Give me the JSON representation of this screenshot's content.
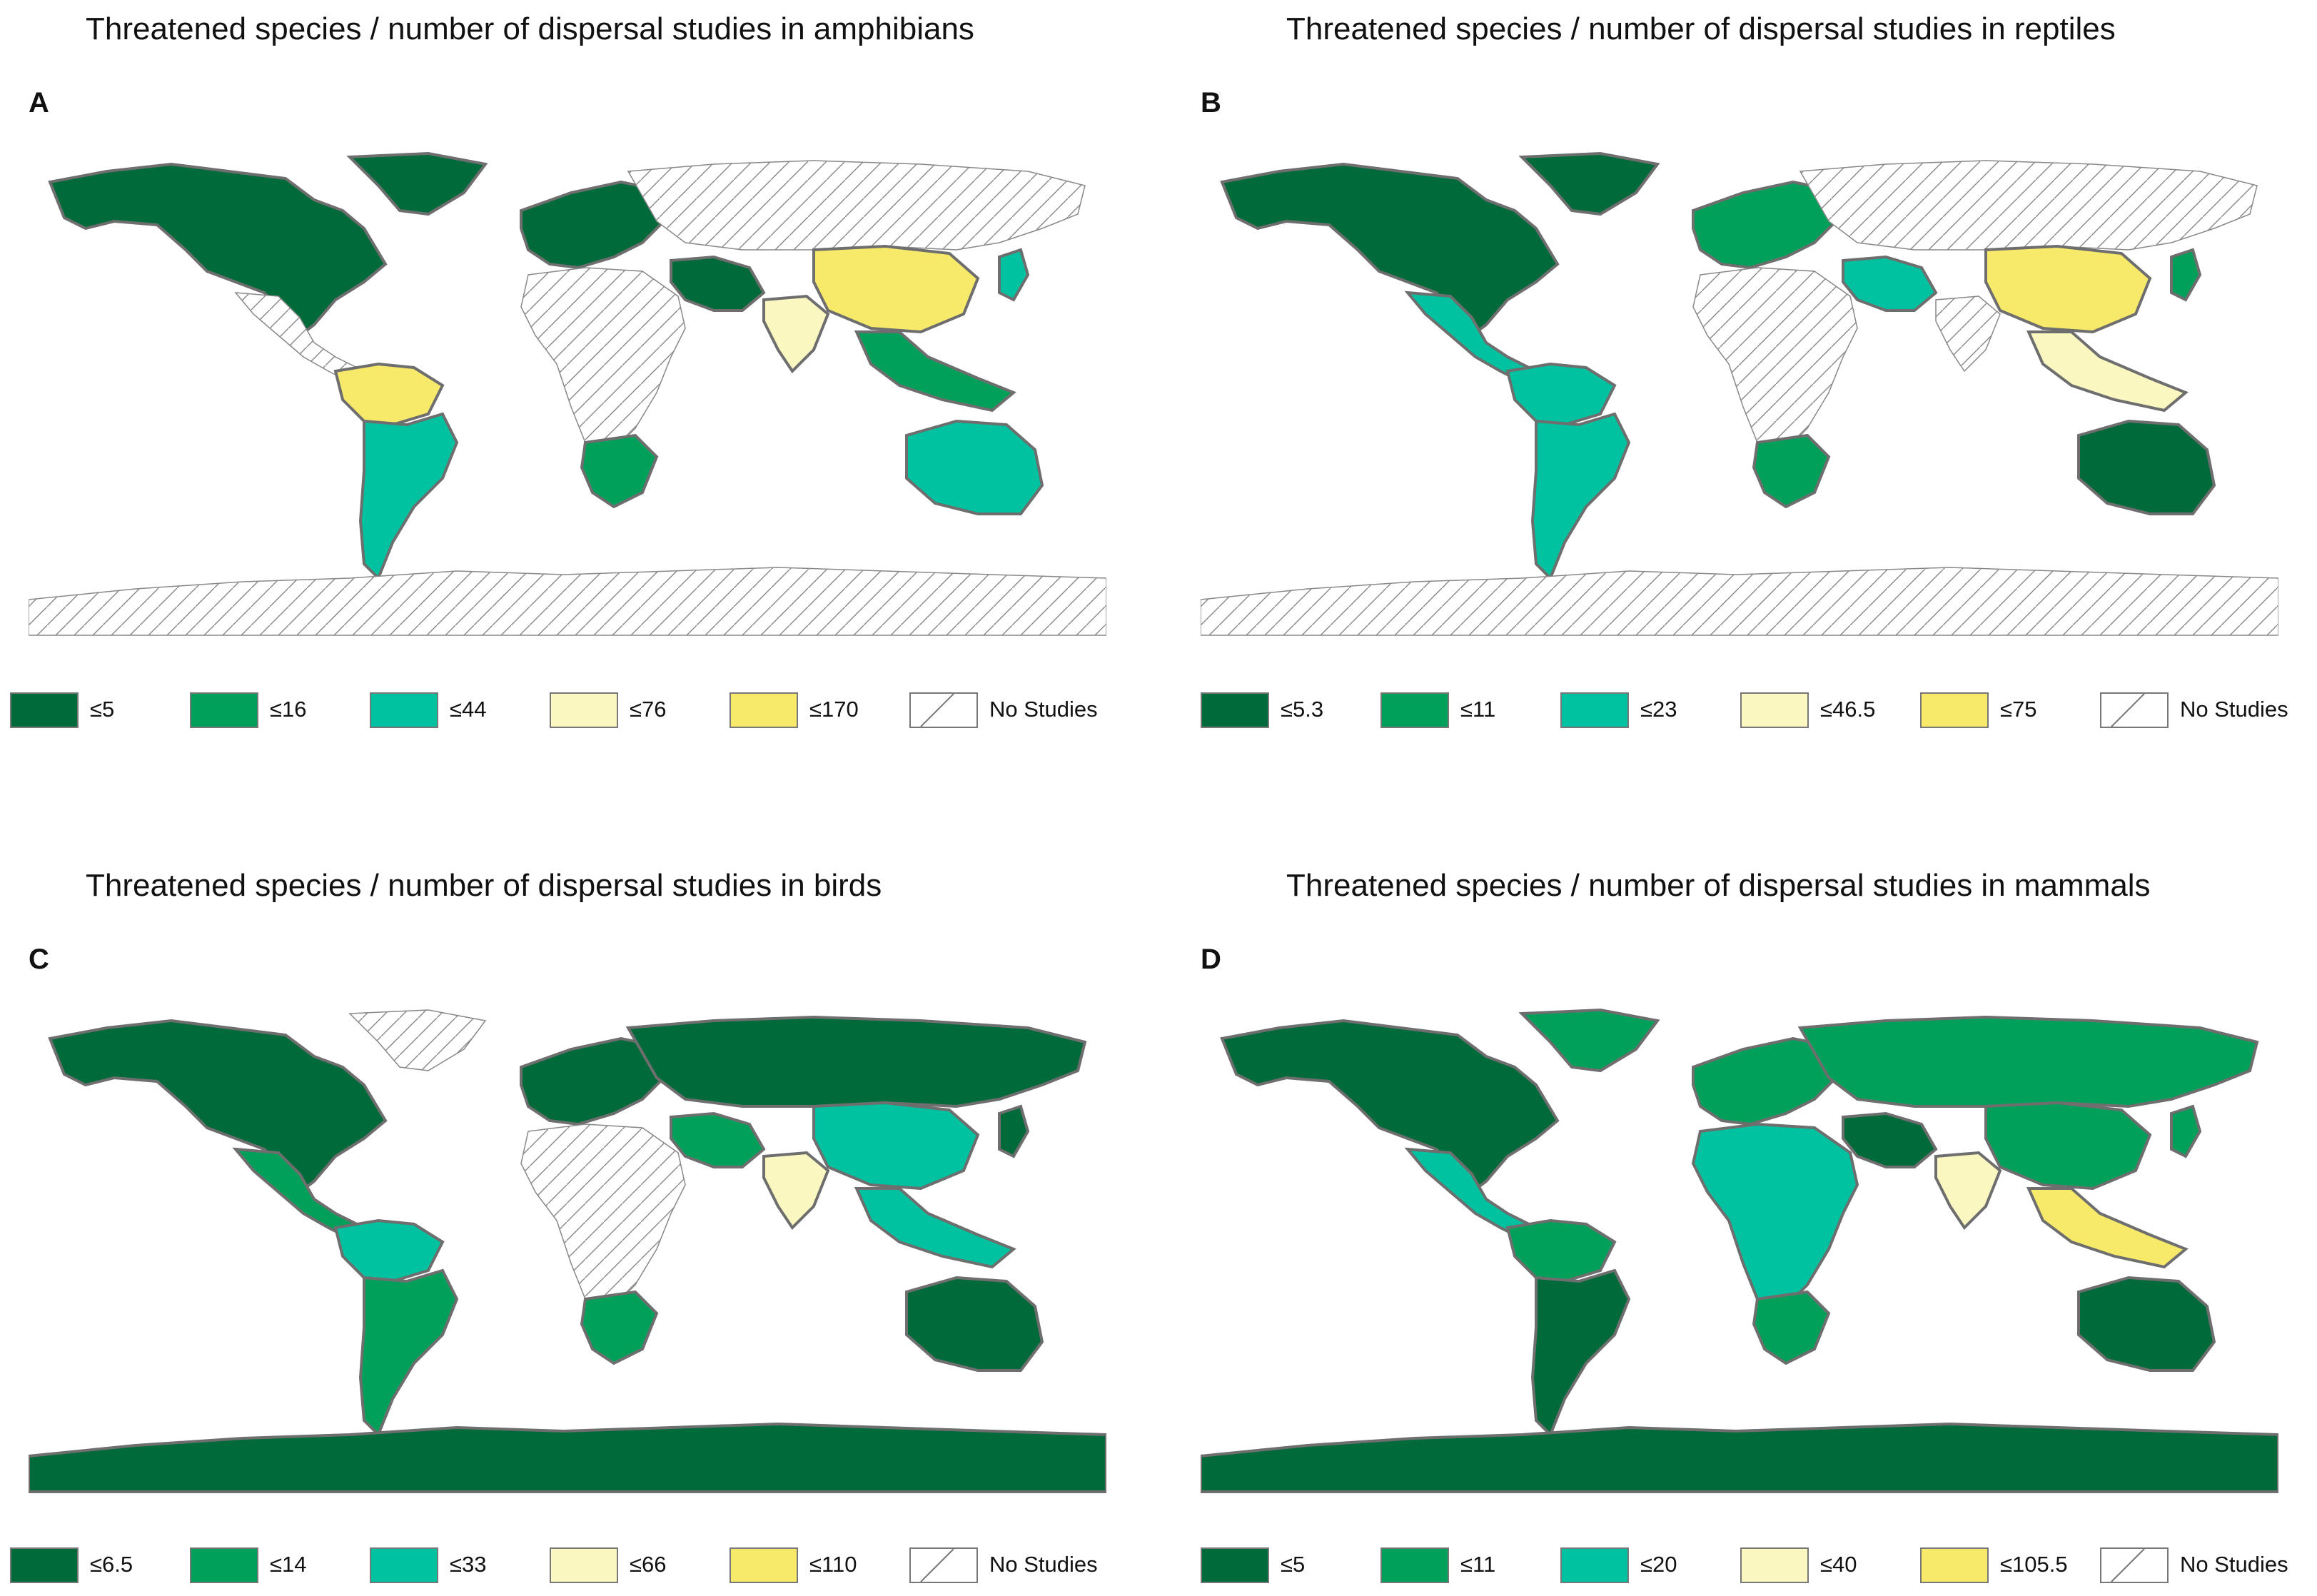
{
  "colors": {
    "c1": "#006a3b",
    "c2": "#00a05a",
    "c3": "#00c2a0",
    "c4": "#fbf7c0",
    "c5": "#f7ea6a",
    "land_outline": "#6e6e6e",
    "no_data_line": "#888888"
  },
  "panels": [
    {
      "letter": "A",
      "title": "Threatened species / number of dispersal studies in amphibians",
      "legend": [
        "≤5",
        "≤16",
        "≤44",
        "≤76",
        "≤170",
        "No Studies"
      ],
      "regions": {
        "north_america": "c1",
        "central_america": "none",
        "south_america_north": "c5",
        "south_america_south": "c3",
        "greenland": "c1",
        "europe": "c1",
        "russia_asia": "none",
        "middle_east": "c1",
        "africa": "none",
        "southern_africa": "c2",
        "india": "c4",
        "china": "c5",
        "southeast_asia": "c2",
        "japan": "c3",
        "australia": "c3",
        "antarctica": "none"
      }
    },
    {
      "letter": "B",
      "title": "Threatened species / number of dispersal studies in reptiles",
      "legend": [
        "≤5.3",
        "≤11",
        "≤23",
        "≤46.5",
        "≤75",
        "No Studies"
      ],
      "regions": {
        "north_america": "c1",
        "central_america": "c3",
        "south_america_north": "c3",
        "south_america_south": "c3",
        "greenland": "c1",
        "europe": "c2",
        "russia_asia": "none",
        "middle_east": "c3",
        "africa": "none",
        "southern_africa": "c2",
        "india": "none",
        "china": "c5",
        "southeast_asia": "c4",
        "japan": "c2",
        "australia": "c1",
        "antarctica": "none"
      }
    },
    {
      "letter": "C",
      "title": "Threatened species / number of dispersal studies in birds",
      "legend": [
        "≤6.5",
        "≤14",
        "≤33",
        "≤66",
        "≤110",
        "No Studies"
      ],
      "regions": {
        "north_america": "c1",
        "central_america": "c2",
        "south_america_north": "c3",
        "south_america_south": "c2",
        "greenland": "none",
        "europe": "c1",
        "russia_asia": "c1",
        "middle_east": "c2",
        "africa": "none",
        "southern_africa": "c2",
        "india": "c4",
        "china": "c3",
        "southeast_asia": "c3",
        "japan": "c1",
        "australia": "c1",
        "antarctica": "c1"
      }
    },
    {
      "letter": "D",
      "title": "Threatened species / number of dispersal studies in mammals",
      "legend": [
        "≤5",
        "≤11",
        "≤20",
        "≤40",
        "≤105.5",
        "No Studies"
      ],
      "regions": {
        "north_america": "c1",
        "central_america": "c3",
        "south_america_north": "c2",
        "south_america_south": "c1",
        "greenland": "c2",
        "europe": "c2",
        "russia_asia": "c2",
        "middle_east": "c1",
        "africa": "c3",
        "southern_africa": "c2",
        "india": "c4",
        "china": "c2",
        "southeast_asia": "c5",
        "japan": "c2",
        "australia": "c1",
        "antarctica": "c1"
      }
    }
  ]
}
